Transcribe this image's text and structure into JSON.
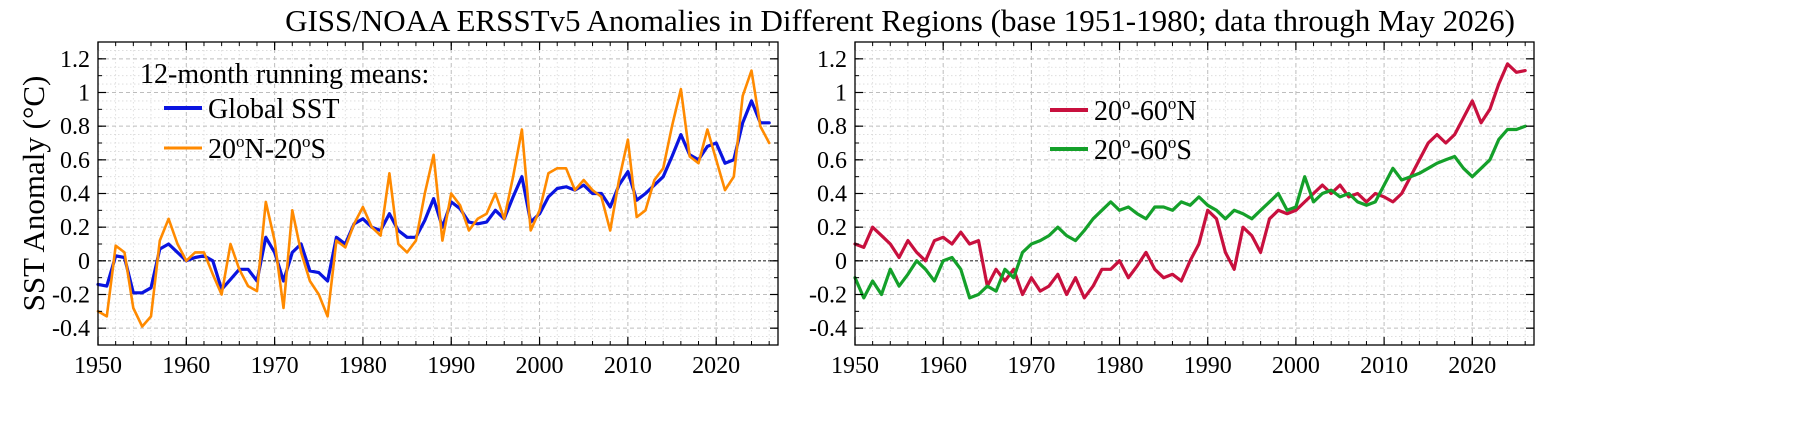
{
  "figure": {
    "title": "GISS/NOAA ERSSTv5 Anomalies in Different Regions (base 1951-1980; data through May 2026)"
  },
  "chart_data": [
    {
      "type": "line",
      "panel": "left",
      "title": "",
      "xlabel": "",
      "ylabel": "SST Anomaly (°C)",
      "xlim": [
        1950,
        2027
      ],
      "ylim": [
        -0.5,
        1.3
      ],
      "xticks": [
        "1950",
        "1960",
        "1970",
        "1980",
        "1990",
        "2000",
        "2010",
        "2020"
      ],
      "yticks": [
        "-0.4",
        "-0.2",
        "0",
        "0.2",
        "0.4",
        "0.6",
        "0.8",
        "1",
        "1.2"
      ],
      "grid": true,
      "zero_line": true,
      "legend_placement": "top-left",
      "legend_title": "12-month running means:",
      "series": [
        {
          "name": "Global SST",
          "label_main": "Global SST",
          "color": "#0a14e0",
          "x": [
            1950,
            1951,
            1952,
            1953,
            1954,
            1955,
            1956,
            1957,
            1958,
            1959,
            1960,
            1961,
            1962,
            1963,
            1964,
            1965,
            1966,
            1967,
            1968,
            1969,
            1970,
            1971,
            1972,
            1973,
            1974,
            1975,
            1976,
            1977,
            1978,
            1979,
            1980,
            1981,
            1982,
            1983,
            1984,
            1985,
            1986,
            1987,
            1988,
            1989,
            1990,
            1991,
            1992,
            1993,
            1994,
            1995,
            1996,
            1997,
            1998,
            1999,
            2000,
            2001,
            2002,
            2003,
            2004,
            2005,
            2006,
            2007,
            2008,
            2009,
            2010,
            2011,
            2012,
            2013,
            2014,
            2015,
            2016,
            2017,
            2018,
            2019,
            2020,
            2021,
            2022,
            2023,
            2024,
            2025,
            2026
          ],
          "y": [
            -0.14,
            -0.15,
            0.03,
            0.02,
            -0.19,
            -0.19,
            -0.16,
            0.07,
            0.1,
            0.05,
            0.0,
            0.02,
            0.03,
            0.0,
            -0.17,
            -0.11,
            -0.05,
            -0.05,
            -0.12,
            0.14,
            0.05,
            -0.12,
            0.05,
            0.1,
            -0.06,
            -0.07,
            -0.12,
            0.14,
            0.1,
            0.22,
            0.25,
            0.2,
            0.18,
            0.28,
            0.18,
            0.14,
            0.14,
            0.24,
            0.37,
            0.2,
            0.35,
            0.31,
            0.23,
            0.22,
            0.23,
            0.3,
            0.25,
            0.38,
            0.5,
            0.23,
            0.28,
            0.38,
            0.43,
            0.44,
            0.42,
            0.45,
            0.4,
            0.4,
            0.32,
            0.45,
            0.53,
            0.36,
            0.4,
            0.45,
            0.5,
            0.62,
            0.75,
            0.63,
            0.6,
            0.68,
            0.7,
            0.58,
            0.6,
            0.82,
            0.95,
            0.82,
            0.82
          ]
        },
        {
          "name": "20°N-20°S",
          "label_main": "20",
          "label_sup1": "o",
          "label_mid": "N-20",
          "label_sup2": "o",
          "label_end": "S",
          "color": "#ff8a00",
          "x": [
            1950,
            1951,
            1952,
            1953,
            1954,
            1955,
            1956,
            1957,
            1958,
            1959,
            1960,
            1961,
            1962,
            1963,
            1964,
            1965,
            1966,
            1967,
            1968,
            1969,
            1970,
            1971,
            1972,
            1973,
            1974,
            1975,
            1976,
            1977,
            1978,
            1979,
            1980,
            1981,
            1982,
            1983,
            1984,
            1985,
            1986,
            1987,
            1988,
            1989,
            1990,
            1991,
            1992,
            1993,
            1994,
            1995,
            1996,
            1997,
            1998,
            1999,
            2000,
            2001,
            2002,
            2003,
            2004,
            2005,
            2006,
            2007,
            2008,
            2009,
            2010,
            2011,
            2012,
            2013,
            2014,
            2015,
            2016,
            2017,
            2018,
            2019,
            2020,
            2021,
            2022,
            2023,
            2024,
            2025,
            2026
          ],
          "y": [
            -0.3,
            -0.33,
            0.09,
            0.05,
            -0.28,
            -0.39,
            -0.33,
            0.12,
            0.25,
            0.1,
            0.0,
            0.05,
            0.05,
            -0.08,
            -0.2,
            0.1,
            -0.05,
            -0.15,
            -0.18,
            0.35,
            0.12,
            -0.28,
            0.3,
            0.05,
            -0.12,
            -0.2,
            -0.33,
            0.12,
            0.08,
            0.22,
            0.32,
            0.2,
            0.15,
            0.52,
            0.1,
            0.05,
            0.12,
            0.4,
            0.63,
            0.12,
            0.4,
            0.33,
            0.18,
            0.25,
            0.28,
            0.4,
            0.25,
            0.5,
            0.78,
            0.18,
            0.3,
            0.52,
            0.55,
            0.55,
            0.42,
            0.48,
            0.42,
            0.38,
            0.18,
            0.48,
            0.72,
            0.26,
            0.3,
            0.48,
            0.55,
            0.8,
            1.02,
            0.62,
            0.58,
            0.78,
            0.6,
            0.42,
            0.5,
            0.98,
            1.13,
            0.8,
            0.7
          ]
        }
      ]
    },
    {
      "type": "line",
      "panel": "right",
      "title": "",
      "xlabel": "",
      "ylabel": "",
      "xlim": [
        1950,
        2027
      ],
      "ylim": [
        -0.5,
        1.3
      ],
      "xticks": [
        "1950",
        "1960",
        "1970",
        "1980",
        "1990",
        "2000",
        "2010",
        "2020"
      ],
      "yticks": [
        "-0.4",
        "-0.2",
        "0",
        "0.2",
        "0.4",
        "0.6",
        "0.8",
        "1",
        "1.2"
      ],
      "grid": true,
      "zero_line": true,
      "legend_placement": "top-left",
      "series": [
        {
          "name": "20°-60°N",
          "label_main": "20",
          "label_sup1": "o",
          "label_mid": "-60",
          "label_sup2": "o",
          "label_end": "N",
          "color": "#c8103e",
          "x": [
            1950,
            1951,
            1952,
            1953,
            1954,
            1955,
            1956,
            1957,
            1958,
            1959,
            1960,
            1961,
            1962,
            1963,
            1964,
            1965,
            1966,
            1967,
            1968,
            1969,
            1970,
            1971,
            1972,
            1973,
            1974,
            1975,
            1976,
            1977,
            1978,
            1979,
            1980,
            1981,
            1982,
            1983,
            1984,
            1985,
            1986,
            1987,
            1988,
            1989,
            1990,
            1991,
            1992,
            1993,
            1994,
            1995,
            1996,
            1997,
            1998,
            1999,
            2000,
            2001,
            2002,
            2003,
            2004,
            2005,
            2006,
            2007,
            2008,
            2009,
            2010,
            2011,
            2012,
            2013,
            2014,
            2015,
            2016,
            2017,
            2018,
            2019,
            2020,
            2021,
            2022,
            2023,
            2024,
            2025,
            2026
          ],
          "y": [
            0.1,
            0.08,
            0.2,
            0.15,
            0.1,
            0.02,
            0.12,
            0.05,
            0.0,
            0.12,
            0.14,
            0.1,
            0.17,
            0.1,
            0.12,
            -0.15,
            -0.05,
            -0.12,
            -0.05,
            -0.2,
            -0.1,
            -0.18,
            -0.15,
            -0.08,
            -0.2,
            -0.1,
            -0.22,
            -0.15,
            -0.05,
            -0.05,
            0.0,
            -0.1,
            -0.03,
            0.05,
            -0.05,
            -0.1,
            -0.08,
            -0.12,
            0.0,
            0.1,
            0.3,
            0.25,
            0.05,
            -0.05,
            0.2,
            0.15,
            0.05,
            0.25,
            0.3,
            0.28,
            0.3,
            0.35,
            0.4,
            0.45,
            0.4,
            0.45,
            0.38,
            0.4,
            0.35,
            0.4,
            0.38,
            0.35,
            0.4,
            0.5,
            0.6,
            0.7,
            0.75,
            0.7,
            0.75,
            0.85,
            0.95,
            0.82,
            0.9,
            1.05,
            1.17,
            1.12,
            1.13
          ]
        },
        {
          "name": "20°-60°S",
          "label_main": "20",
          "label_sup1": "o",
          "label_mid": "-60",
          "label_sup2": "o",
          "label_end": "S",
          "color": "#14a02a",
          "x": [
            1950,
            1951,
            1952,
            1953,
            1954,
            1955,
            1956,
            1957,
            1958,
            1959,
            1960,
            1961,
            1962,
            1963,
            1964,
            1965,
            1966,
            1967,
            1968,
            1969,
            1970,
            1971,
            1972,
            1973,
            1974,
            1975,
            1976,
            1977,
            1978,
            1979,
            1980,
            1981,
            1982,
            1983,
            1984,
            1985,
            1986,
            1987,
            1988,
            1989,
            1990,
            1991,
            1992,
            1993,
            1994,
            1995,
            1996,
            1997,
            1998,
            1999,
            2000,
            2001,
            2002,
            2003,
            2004,
            2005,
            2006,
            2007,
            2008,
            2009,
            2010,
            2011,
            2012,
            2013,
            2014,
            2015,
            2016,
            2017,
            2018,
            2019,
            2020,
            2021,
            2022,
            2023,
            2024,
            2025,
            2026
          ],
          "y": [
            -0.1,
            -0.22,
            -0.12,
            -0.2,
            -0.05,
            -0.15,
            -0.08,
            0.0,
            -0.05,
            -0.12,
            0.0,
            0.02,
            -0.05,
            -0.22,
            -0.2,
            -0.15,
            -0.18,
            -0.05,
            -0.1,
            0.05,
            0.1,
            0.12,
            0.15,
            0.2,
            0.15,
            0.12,
            0.18,
            0.25,
            0.3,
            0.35,
            0.3,
            0.32,
            0.28,
            0.25,
            0.32,
            0.32,
            0.3,
            0.35,
            0.33,
            0.38,
            0.33,
            0.3,
            0.25,
            0.3,
            0.28,
            0.25,
            0.3,
            0.35,
            0.4,
            0.3,
            0.32,
            0.5,
            0.35,
            0.4,
            0.42,
            0.38,
            0.4,
            0.35,
            0.33,
            0.35,
            0.45,
            0.55,
            0.48,
            0.5,
            0.52,
            0.55,
            0.58,
            0.6,
            0.62,
            0.55,
            0.5,
            0.55,
            0.6,
            0.72,
            0.78,
            0.78,
            0.8
          ]
        }
      ]
    }
  ]
}
